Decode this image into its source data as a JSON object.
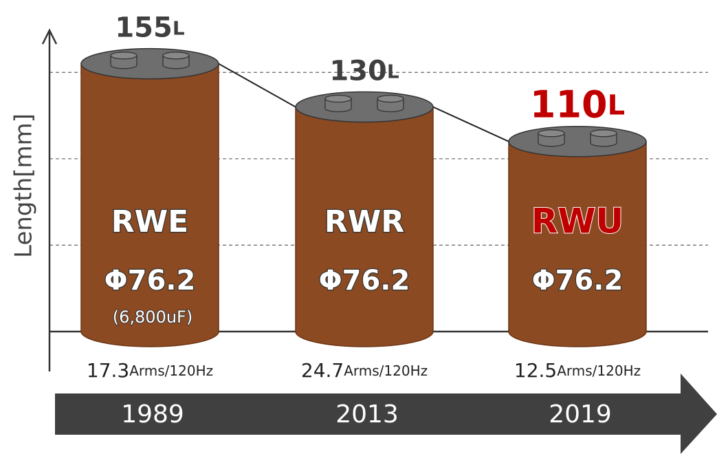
{
  "chart_data": {
    "type": "cylinder",
    "y_label": "Length[mm]",
    "categories": [
      "1989",
      "2013",
      "2019"
    ],
    "values": [
      155,
      130,
      110
    ],
    "unit": "L",
    "label_colors": [
      "#3f3f3f",
      "#3f3f3f",
      "#c00000"
    ],
    "color": "#8b4a22",
    "cap_color": "#6e6e6e",
    "names": [
      "RWE",
      "RWR",
      "RWU"
    ],
    "diameters": [
      "Φ76.2",
      "Φ76.2",
      "Φ76.2"
    ],
    "capacitances": [
      "(6,800uF)",
      null,
      null
    ],
    "ripple_currents": [
      17.3,
      24.7,
      12.5
    ],
    "ripple_unit": "Arms/120Hz",
    "ylim": [
      0,
      170
    ],
    "yticks": [
      50,
      100,
      150
    ],
    "grid": true
  }
}
